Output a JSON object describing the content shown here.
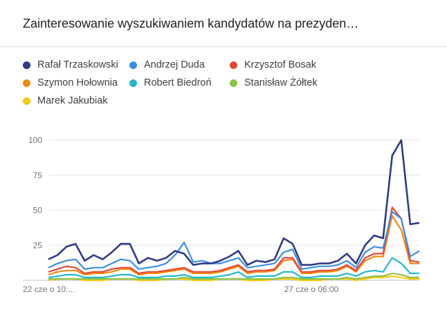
{
  "title": "Zainteresowanie wyszukiwaniem kandydatów na prezyden…",
  "colors": {
    "Rafał Trzaskowski": "#2e3a8c",
    "Andrzej Duda": "#3b8fe0",
    "Krzysztof Bosak": "#e8453c",
    "Szymon Hołownia": "#f28b0c",
    "Robert Biedroń": "#21b7cc",
    "Stanisław Żółtek": "#8bc34a",
    "Marek Jakubiak": "#f9c80e"
  },
  "chart_data": {
    "type": "line",
    "title": "Zainteresowanie wyszukiwaniem kandydatów na prezyden…",
    "xlabel": "",
    "ylabel": "",
    "ylim": [
      0,
      100
    ],
    "yticks": [
      25,
      50,
      75,
      100
    ],
    "grid": true,
    "legend_position": "top",
    "x_tick_labels": [
      {
        "index": 0,
        "label": "22 cze o 10:..."
      },
      {
        "index": 33,
        "label": "27 cze o 06:00"
      }
    ],
    "series": [
      {
        "name": "Rafał Trzaskowski",
        "values": [
          15,
          18,
          24,
          26,
          14,
          18,
          15,
          20,
          26,
          26,
          12,
          16,
          14,
          16,
          21,
          19,
          11,
          12,
          12,
          14,
          17,
          21,
          11,
          14,
          13,
          15,
          30,
          26,
          11,
          11,
          12,
          12,
          14,
          19,
          12,
          25,
          32,
          30,
          89,
          100,
          40,
          41
        ]
      },
      {
        "name": "Andrzej Duda",
        "values": [
          9,
          12,
          14,
          15,
          8,
          9,
          9,
          12,
          15,
          14,
          8,
          9,
          10,
          12,
          18,
          27,
          13,
          14,
          12,
          12,
          14,
          16,
          9,
          10,
          11,
          12,
          20,
          22,
          8,
          9,
          10,
          10,
          11,
          14,
          9,
          20,
          24,
          23,
          49,
          44,
          17,
          21
        ]
      },
      {
        "name": "Krzysztof Bosak",
        "values": [
          6,
          8,
          10,
          9,
          5,
          6,
          6,
          8,
          9,
          9,
          5,
          6,
          6,
          7,
          8,
          9,
          6,
          6,
          6,
          7,
          9,
          11,
          6,
          7,
          7,
          8,
          16,
          16,
          6,
          6,
          7,
          7,
          8,
          11,
          7,
          16,
          19,
          19,
          52,
          44,
          14,
          13
        ]
      },
      {
        "name": "Szymon Hołownia",
        "values": [
          4,
          6,
          7,
          7,
          4,
          5,
          5,
          6,
          8,
          8,
          4,
          5,
          5,
          6,
          7,
          8,
          5,
          5,
          5,
          6,
          8,
          10,
          5,
          6,
          6,
          7,
          14,
          15,
          5,
          5,
          6,
          6,
          7,
          10,
          6,
          14,
          17,
          17,
          46,
          36,
          12,
          12
        ]
      },
      {
        "name": "Robert Biedroń",
        "values": [
          2,
          3,
          4,
          4,
          2,
          2,
          2,
          3,
          4,
          4,
          2,
          2,
          2,
          3,
          3,
          4,
          2,
          2,
          2,
          3,
          4,
          6,
          2,
          3,
          3,
          3,
          6,
          6,
          2,
          2,
          3,
          3,
          3,
          5,
          3,
          6,
          7,
          6,
          16,
          12,
          5,
          5
        ]
      },
      {
        "name": "Stanisław Żółtek",
        "values": [
          1,
          1,
          1,
          1,
          1,
          1,
          1,
          1,
          1,
          1,
          1,
          1,
          1,
          1,
          1,
          2,
          1,
          1,
          1,
          1,
          1,
          1,
          1,
          1,
          1,
          1,
          2,
          2,
          1,
          1,
          1,
          1,
          1,
          2,
          1,
          2,
          3,
          3,
          5,
          4,
          2,
          2
        ]
      },
      {
        "name": "Marek Jakubiak",
        "values": [
          0,
          1,
          1,
          1,
          0,
          0,
          0,
          1,
          1,
          1,
          0,
          0,
          0,
          1,
          1,
          1,
          0,
          0,
          0,
          1,
          1,
          1,
          0,
          0,
          0,
          1,
          1,
          1,
          0,
          0,
          0,
          1,
          1,
          1,
          0,
          1,
          2,
          2,
          3,
          2,
          1,
          1
        ]
      }
    ]
  }
}
